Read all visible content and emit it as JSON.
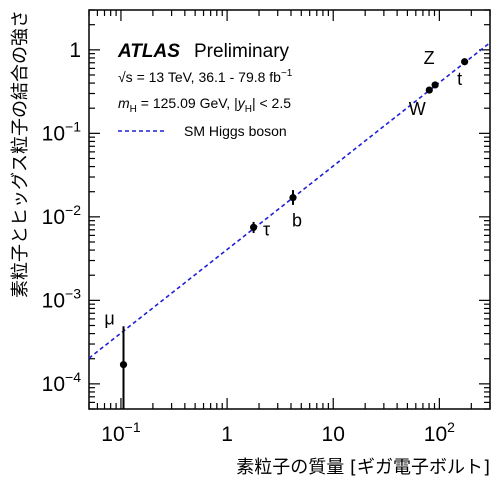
{
  "chart_data": {
    "type": "scatter",
    "x_scale": "log",
    "y_scale": "log",
    "xlim": [
      0.05,
      300
    ],
    "ylim": [
      5e-05,
      3
    ],
    "xlabel": "素粒子の質量 [ギガ電子ボルト]",
    "ylabel": "素粒子とヒッグス粒子の結合の強さ",
    "x_ticks": [
      {
        "value": 0.1,
        "base": "10",
        "exp": "−1"
      },
      {
        "value": 1,
        "text": "1"
      },
      {
        "value": 10,
        "text": "10"
      },
      {
        "value": 100,
        "base": "10",
        "exp": "2"
      }
    ],
    "y_ticks": [
      {
        "value": 0.0001,
        "base": "10",
        "exp": "−4"
      },
      {
        "value": 0.001,
        "base": "10",
        "exp": "−3"
      },
      {
        "value": 0.01,
        "base": "10",
        "exp": "−2"
      },
      {
        "value": 0.1,
        "base": "10",
        "exp": "−1"
      },
      {
        "value": 1,
        "text": "1"
      }
    ],
    "points": [
      {
        "label": "μ",
        "x": 0.1057,
        "y": 0.00017,
        "err_low": 5e-05,
        "err_high": 0.00049
      },
      {
        "label": "τ",
        "x": 1.777,
        "y": 0.0075,
        "err_low": 0.0064,
        "err_high": 0.0087
      },
      {
        "label": "b",
        "x": 4.18,
        "y": 0.017,
        "err_low": 0.0139,
        "err_high": 0.0209
      },
      {
        "label": "W",
        "x": 80.4,
        "y": 0.33,
        "err_low": 0.312,
        "err_high": 0.348
      },
      {
        "label": "Z",
        "x": 91.19,
        "y": 0.38,
        "err_low": 0.36,
        "err_high": 0.4
      },
      {
        "label": "t",
        "x": 173,
        "y": 0.72,
        "err_low": 0.67,
        "err_high": 0.77
      }
    ],
    "reference_line": {
      "name": "SM Higgs boson",
      "coefficient": 0.00406,
      "style": "dashed",
      "color": "#1f1fd9"
    },
    "legend": {
      "experiment": "ATLAS",
      "status": "Preliminary",
      "energy_line": "√s = 13 TeV, 36.1 - 79.8 fb⁻¹",
      "mass_line": "m_H = 125.09 GeV, |y_H| < 2.5",
      "entry": "SM Higgs boson",
      "placement": "top-left"
    }
  }
}
